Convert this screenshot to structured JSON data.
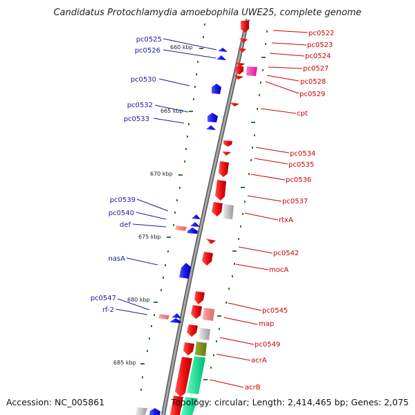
{
  "title": "Candidatus Protochlamydia amoebophila UWE25, complete genome",
  "accession": "Accession: NC_005861",
  "topology": "Topology: circular; Length: 2,414,465 bp; Genes: 2,075",
  "colors": {
    "reverse_strand": "#1a1aee",
    "forward_strand": "#ee1111",
    "label_blue": "#1a1a99",
    "label_red": "#cc0000",
    "tick": "#2a7a2a",
    "backbone": "#888888"
  },
  "kbp_markers": [
    {
      "label": "660 kbp"
    },
    {
      "label": "665 kbp"
    },
    {
      "label": "670 kbp"
    },
    {
      "label": "675 kbp"
    },
    {
      "label": "680 kbp"
    },
    {
      "label": "685 kbp"
    }
  ],
  "left_labels": [
    {
      "text": "pc0525"
    },
    {
      "text": "pc0526"
    },
    {
      "text": "pc0530"
    },
    {
      "text": "pc0532"
    },
    {
      "text": "pc0533"
    },
    {
      "text": "pc0539"
    },
    {
      "text": "pc0540"
    },
    {
      "text": "def"
    },
    {
      "text": "nasA"
    },
    {
      "text": "pc0547"
    },
    {
      "text": "rf-2"
    }
  ],
  "right_labels": [
    {
      "text": "pc0522"
    },
    {
      "text": "pc0523"
    },
    {
      "text": "pc0524"
    },
    {
      "text": "pc0527"
    },
    {
      "text": "pc0528"
    },
    {
      "text": "pc0529"
    },
    {
      "text": "cpt"
    },
    {
      "text": "pc0534"
    },
    {
      "text": "pc0535"
    },
    {
      "text": "pc0536"
    },
    {
      "text": "pc0537"
    },
    {
      "text": "rtxA"
    },
    {
      "text": "pc0542"
    },
    {
      "text": "mocA"
    },
    {
      "text": "pc0545"
    },
    {
      "text": "map"
    },
    {
      "text": "pc0549"
    },
    {
      "text": "acrA"
    },
    {
      "text": "acrB"
    }
  ]
}
